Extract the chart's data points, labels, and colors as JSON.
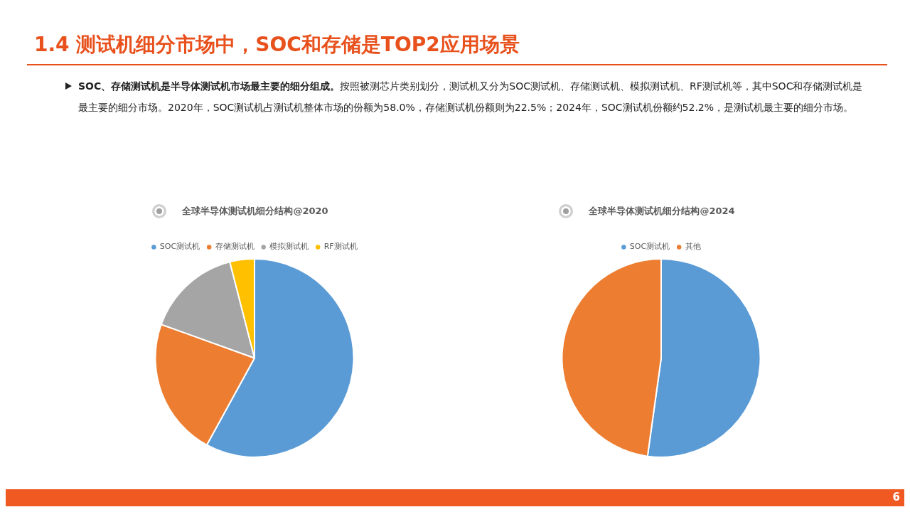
{
  "chart_data": [
    {
      "type": "other",
      "title": "1.4 测试机细分市场中，SOC和存储是TOP2应用场景",
      "annotations": [
        "SOC、存储测试机是半导体测试机市场最主要的细分组成。",
        "按照被测芯片类别划分，测试机又分为SOC测试机、存储测试机、模拟测试机、RF测试机等，其中SOC和存储测试机是最主要的细分市场。2020年，SOC测试机占测试机整体市场的份额为58.0%，存储测试机份额则为22.5%；2024年，SOC测试机份额约52.2%，是测试机最主要的细分市场。",
        "6"
      ]
    },
    {
      "type": "pie",
      "title": "全球半导体测试机细分结构@2020",
      "categories": [
        "SOC测试机",
        "存储测试机",
        "模拟测试机",
        "RF测试机"
      ],
      "values": [
        58.0,
        22.5,
        15.5,
        4.0
      ],
      "colors": [
        "#5b9bd5",
        "#ed7d31",
        "#a5a5a5",
        "#ffc000"
      ],
      "legend": "top"
    },
    {
      "type": "pie",
      "title": "全球半导体测试机细分结构@2024",
      "categories": [
        "SOC测试机",
        "其他"
      ],
      "values": [
        52.2,
        47.8
      ],
      "colors": [
        "#5b9bd5",
        "#ed7d31"
      ],
      "legend": "top"
    }
  ]
}
